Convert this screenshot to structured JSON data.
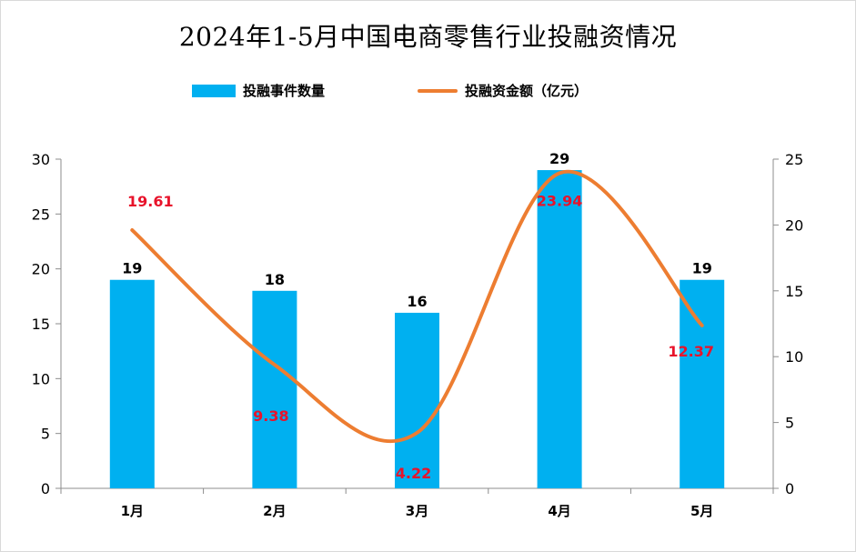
{
  "chart_data": {
    "type": "bar",
    "title": "2024年1-5月中国电商零售行业投融资情况",
    "categories": [
      "1月",
      "2月",
      "3月",
      "4月",
      "5月"
    ],
    "series": [
      {
        "name": "投融事件数量",
        "kind": "bar",
        "axis": "left",
        "color": "#00B0F0",
        "values": [
          19,
          18,
          16,
          29,
          19
        ],
        "labels": [
          "19",
          "18",
          "16",
          "29",
          "19"
        ]
      },
      {
        "name": "投融资金额（亿元）",
        "kind": "line",
        "axis": "right",
        "smooth": true,
        "color": "#ED7D31",
        "label_color": "#E8132B",
        "values": [
          19.61,
          9.38,
          4.22,
          23.94,
          12.37
        ],
        "labels": [
          "19.61",
          "9.38",
          "4.22",
          "23.94",
          "12.37"
        ]
      }
    ],
    "y_left": {
      "range": [
        0,
        30
      ],
      "ticks": [
        "0",
        "5",
        "10",
        "15",
        "20",
        "25",
        "30"
      ]
    },
    "y_right": {
      "range": [
        0,
        25
      ],
      "ticks": [
        "0",
        "5",
        "10",
        "15",
        "20",
        "25"
      ]
    },
    "grid": false,
    "legend_position": "top"
  }
}
